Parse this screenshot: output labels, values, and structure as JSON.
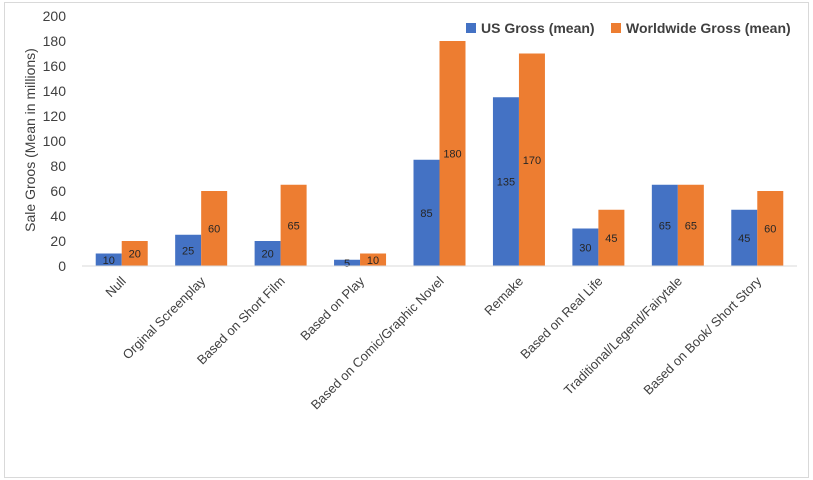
{
  "chart_data": {
    "type": "bar",
    "title": "",
    "xlabel": "",
    "ylabel": "Sale Groos (Mean in millions)",
    "ylim": [
      0,
      200
    ],
    "yticks": [
      0,
      20,
      40,
      60,
      80,
      100,
      120,
      140,
      160,
      180,
      200
    ],
    "grid": false,
    "legend_position": "top-right",
    "categories": [
      "Null",
      "Orginal Screenplay",
      "Based on Short Film",
      "Based on Play",
      "Based on Comic/Graphic Novel",
      "Remake",
      "Based on Real Life",
      "Traditional/Legend/Fairytale",
      "Based on Book/ Short Story"
    ],
    "series": [
      {
        "name": "US Gross (mean)",
        "color": "#4472c4",
        "values": [
          10,
          25,
          20,
          5,
          85,
          135,
          30,
          65,
          45
        ]
      },
      {
        "name": "Worldwide Gross (mean)",
        "color": "#ed7d31",
        "values": [
          20,
          60,
          65,
          10,
          180,
          170,
          45,
          65,
          60
        ]
      }
    ]
  }
}
